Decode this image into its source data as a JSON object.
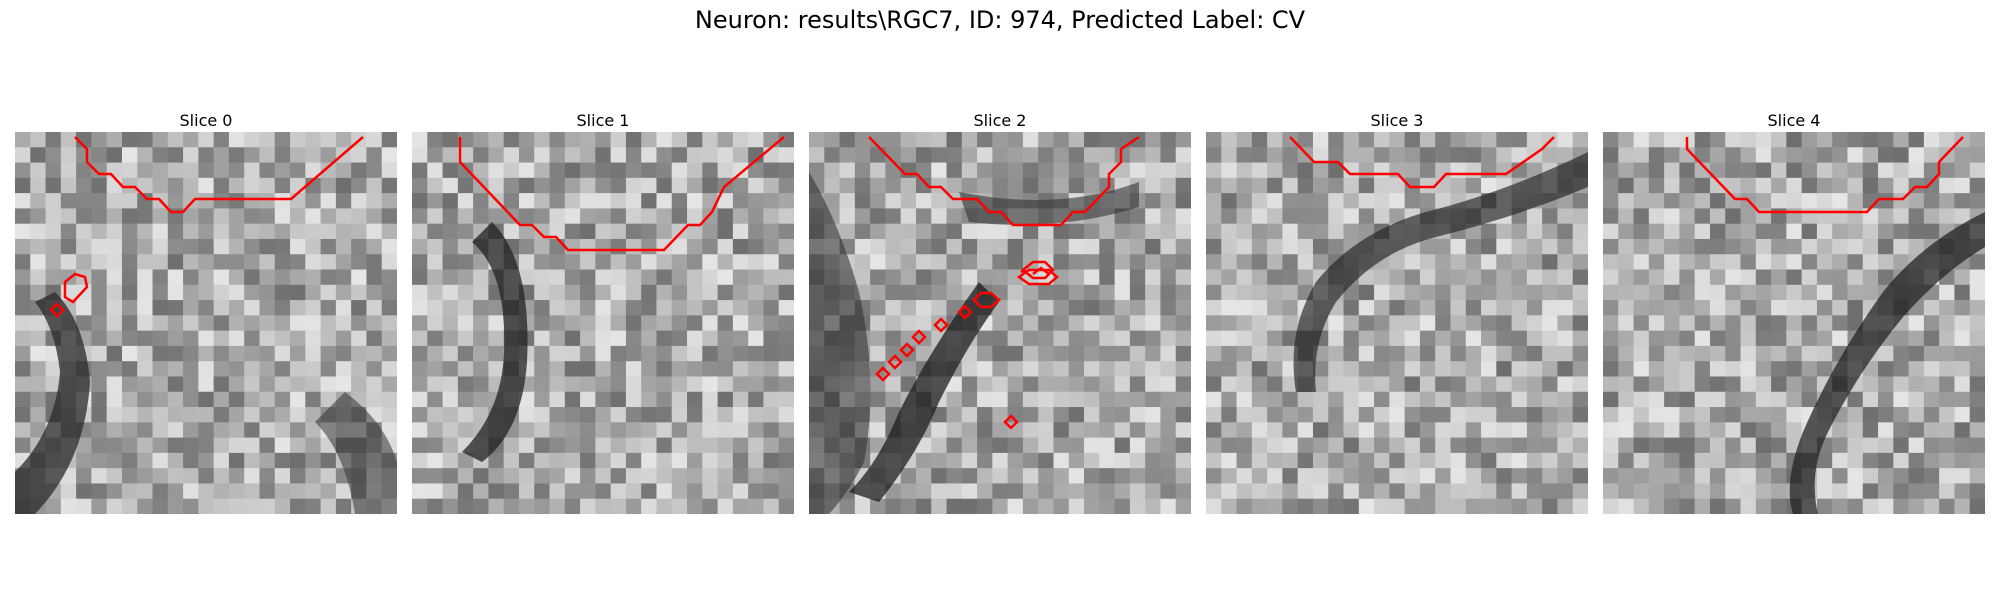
{
  "figure": {
    "title": "Neuron: results\\RGC7, ID: 974, Predicted Label: CV"
  },
  "colors": {
    "contour": "#ff0000"
  },
  "slices": [
    {
      "title": "Slice 0"
    },
    {
      "title": "Slice 1"
    },
    {
      "title": "Slice 2"
    },
    {
      "title": "Slice 3"
    },
    {
      "title": "Slice 4"
    }
  ]
}
